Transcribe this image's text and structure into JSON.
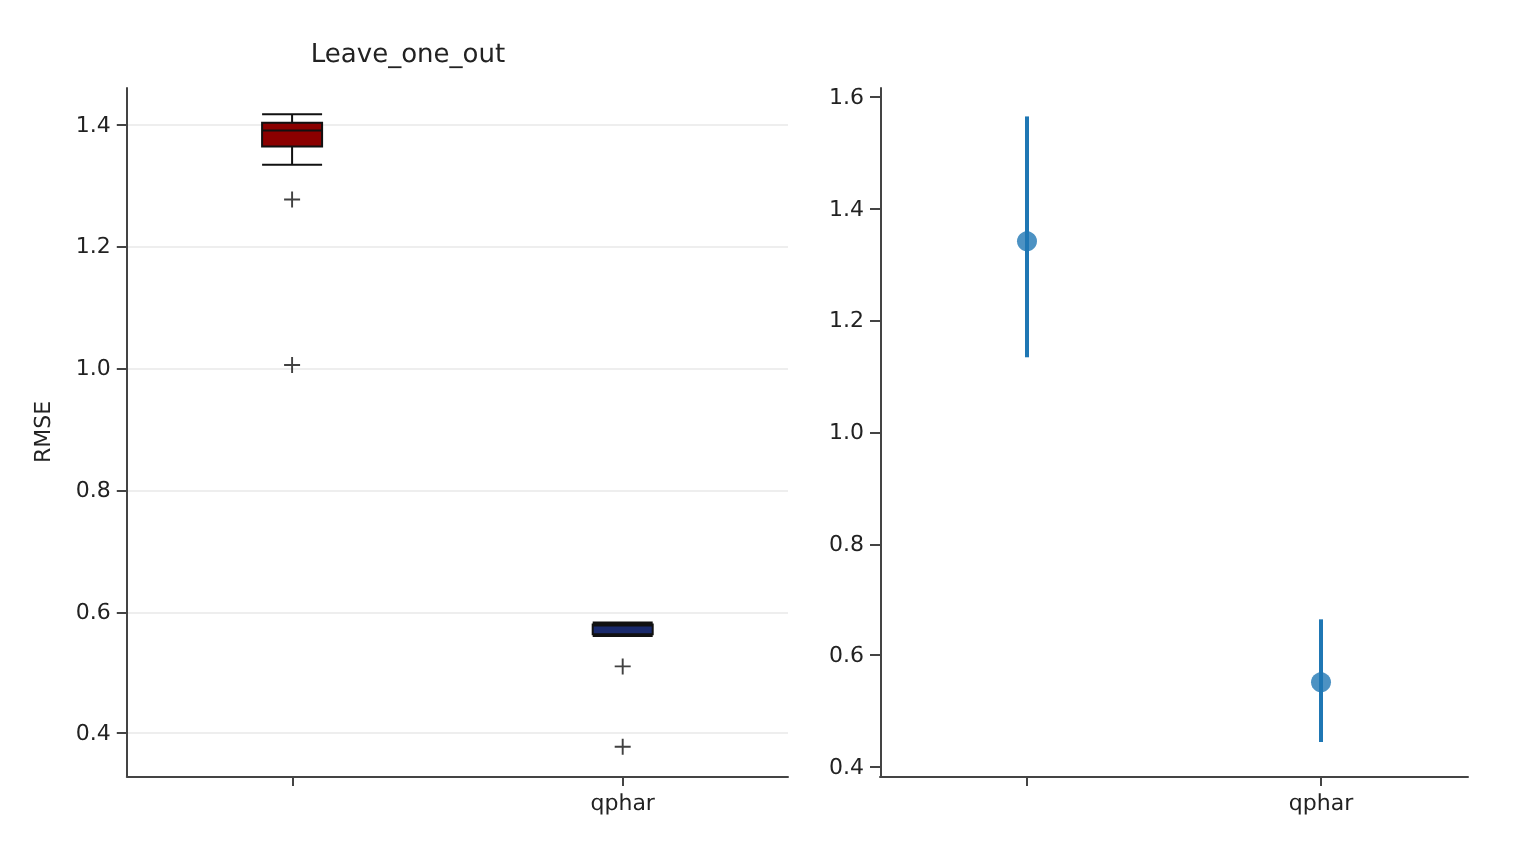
{
  "chart_data": [
    {
      "type": "box",
      "title": "Leave_one_out",
      "ylabel": "RMSE",
      "categories": [
        null,
        "qphar"
      ],
      "colors": [
        "#8b0000",
        "#1a2a6c"
      ],
      "ylim": [
        0.33,
        1.46
      ],
      "yticks": [
        0.4,
        0.6,
        0.8,
        {
          "value": 1,
          "label": "1.0"
        },
        1.2,
        1.4
      ],
      "grid": "y",
      "marker": "cross",
      "boxes": [
        {
          "low": 1.334,
          "q1": 1.364,
          "median": 1.39,
          "q3": 1.403,
          "high": 1.417,
          "outliers": [
            1.277,
            1.005
          ]
        },
        {
          "low": 0.56,
          "q1": 0.563,
          "median": 0.577,
          "q3": 0.579,
          "high": 0.582,
          "outliers": [
            0.51,
            0.378
          ]
        }
      ]
    },
    {
      "type": "scatter",
      "categories": [
        null,
        "qphar"
      ],
      "color": "#1f77b4",
      "values": [
        1.342,
        0.551
      ],
      "errors": [
        [
          1.134,
          1.566
        ],
        [
          0.444,
          0.664
        ]
      ],
      "ylim": [
        0.383,
        1.617
      ],
      "yticks": [
        0.4,
        0.6,
        0.8,
        {
          "value": 1,
          "label": "1.0"
        },
        1.2,
        1.4,
        1.6
      ],
      "grid": false,
      "marker": "circle"
    }
  ]
}
